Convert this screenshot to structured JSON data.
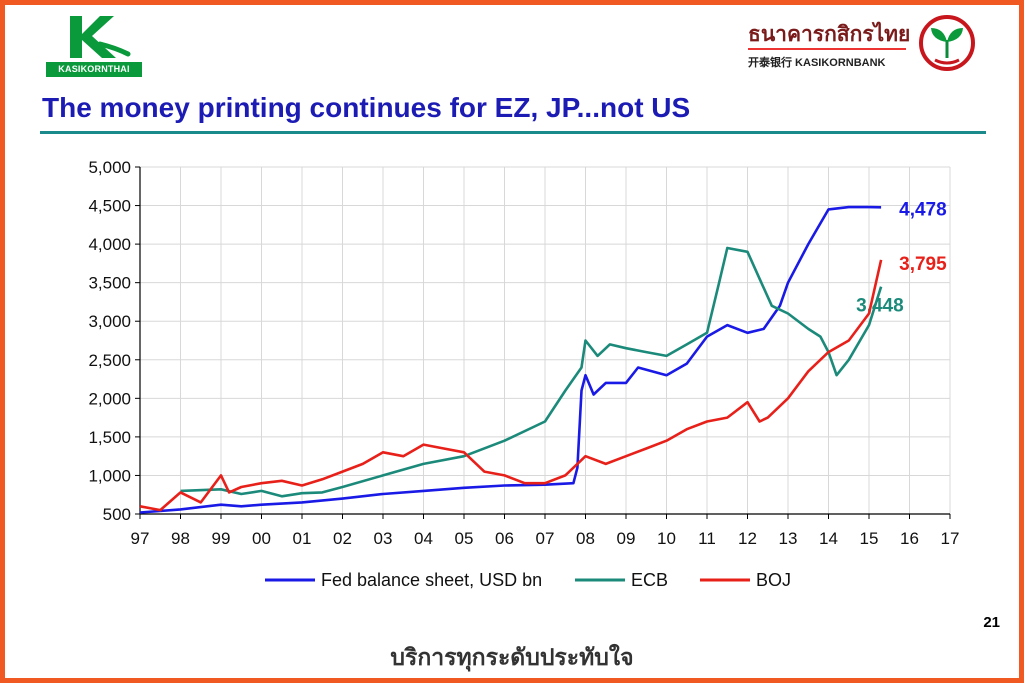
{
  "header": {
    "left_logo_text": "KASIKORNTHAI",
    "bank_name_thai": "ธนาคารกสิกรไทย",
    "bank_name_en": "开泰银行 KASIKORNBANK",
    "title": "The money printing continues for EZ, JP...not US"
  },
  "footer": {
    "page_number": "21",
    "slogan": "บริการทุกระดับประทับใจ"
  },
  "colors": {
    "frame": "#f05a22",
    "title": "#1c1cb4",
    "fed": "#1a1ae6",
    "ecb": "#1b8a7a",
    "boj": "#e8201a"
  },
  "chart_data": {
    "type": "line",
    "title": "",
    "xlabel": "",
    "ylabel": "",
    "x_ticks": [
      "97",
      "98",
      "99",
      "00",
      "01",
      "02",
      "03",
      "04",
      "05",
      "06",
      "07",
      "08",
      "09",
      "10",
      "11",
      "12",
      "13",
      "14",
      "15",
      "16",
      "17"
    ],
    "xlim": [
      1997,
      2017
    ],
    "ylim": [
      500,
      5000
    ],
    "y_ticks": [
      "500",
      "1,000",
      "1,500",
      "2,000",
      "2,500",
      "3,000",
      "3,500",
      "4,000",
      "4,500",
      "5,000"
    ],
    "grid": true,
    "legend_position": "bottom",
    "series": [
      {
        "name": "Fed balance sheet, USD bn",
        "color": "#1a1ae6",
        "end_label": "4,478",
        "points": [
          [
            1997,
            520
          ],
          [
            1998,
            560
          ],
          [
            1999,
            620
          ],
          [
            1999.5,
            600
          ],
          [
            2000,
            620
          ],
          [
            2001,
            650
          ],
          [
            2002,
            700
          ],
          [
            2003,
            760
          ],
          [
            2004,
            800
          ],
          [
            2005,
            840
          ],
          [
            2006,
            870
          ],
          [
            2007,
            880
          ],
          [
            2007.7,
            900
          ],
          [
            2007.8,
            1100
          ],
          [
            2007.9,
            2100
          ],
          [
            2008,
            2300
          ],
          [
            2008.2,
            2050
          ],
          [
            2008.5,
            2200
          ],
          [
            2009,
            2200
          ],
          [
            2009.3,
            2400
          ],
          [
            2010,
            2300
          ],
          [
            2010.5,
            2450
          ],
          [
            2011,
            2800
          ],
          [
            2011.5,
            2950
          ],
          [
            2012,
            2850
          ],
          [
            2012.4,
            2900
          ],
          [
            2012.8,
            3200
          ],
          [
            2013,
            3500
          ],
          [
            2013.5,
            4000
          ],
          [
            2014,
            4450
          ],
          [
            2014.5,
            4480
          ],
          [
            2015,
            4480
          ],
          [
            2015.3,
            4478
          ]
        ]
      },
      {
        "name": "ECB",
        "color": "#1b8a7a",
        "end_label": "3,448",
        "points": [
          [
            1998,
            800
          ],
          [
            1999,
            820
          ],
          [
            1999.5,
            760
          ],
          [
            2000,
            800
          ],
          [
            2000.5,
            730
          ],
          [
            2001,
            770
          ],
          [
            2001.5,
            780
          ],
          [
            2002,
            850
          ],
          [
            2003,
            1000
          ],
          [
            2004,
            1150
          ],
          [
            2005,
            1250
          ],
          [
            2006,
            1450
          ],
          [
            2007,
            1700
          ],
          [
            2007.5,
            2100
          ],
          [
            2007.9,
            2400
          ],
          [
            2008,
            2750
          ],
          [
            2008.3,
            2550
          ],
          [
            2008.6,
            2700
          ],
          [
            2009,
            2650
          ],
          [
            2009.5,
            2600
          ],
          [
            2010,
            2550
          ],
          [
            2010.5,
            2700
          ],
          [
            2011,
            2850
          ],
          [
            2011.3,
            3500
          ],
          [
            2011.5,
            3950
          ],
          [
            2012,
            3900
          ],
          [
            2012.3,
            3550
          ],
          [
            2012.6,
            3200
          ],
          [
            2013,
            3100
          ],
          [
            2013.5,
            2900
          ],
          [
            2013.8,
            2800
          ],
          [
            2014,
            2600
          ],
          [
            2014.2,
            2300
          ],
          [
            2014.5,
            2500
          ],
          [
            2015,
            2950
          ],
          [
            2015.3,
            3448
          ]
        ]
      },
      {
        "name": "BOJ",
        "color": "#e8201a",
        "end_label": "3,795",
        "points": [
          [
            1997,
            600
          ],
          [
            1997.5,
            550
          ],
          [
            1998,
            780
          ],
          [
            1998.5,
            650
          ],
          [
            1999,
            1000
          ],
          [
            1999.2,
            780
          ],
          [
            1999.5,
            850
          ],
          [
            2000,
            900
          ],
          [
            2000.5,
            930
          ],
          [
            2001,
            870
          ],
          [
            2001.5,
            950
          ],
          [
            2002,
            1050
          ],
          [
            2002.5,
            1150
          ],
          [
            2003,
            1300
          ],
          [
            2003.5,
            1250
          ],
          [
            2004,
            1400
          ],
          [
            2004.5,
            1350
          ],
          [
            2005,
            1300
          ],
          [
            2005.5,
            1050
          ],
          [
            2006,
            1000
          ],
          [
            2006.5,
            900
          ],
          [
            2007,
            900
          ],
          [
            2007.5,
            1000
          ],
          [
            2008,
            1250
          ],
          [
            2008.5,
            1150
          ],
          [
            2009,
            1250
          ],
          [
            2009.5,
            1350
          ],
          [
            2010,
            1450
          ],
          [
            2010.5,
            1600
          ],
          [
            2011,
            1700
          ],
          [
            2011.5,
            1750
          ],
          [
            2012,
            1950
          ],
          [
            2012.3,
            1700
          ],
          [
            2012.5,
            1750
          ],
          [
            2013,
            2000
          ],
          [
            2013.5,
            2350
          ],
          [
            2014,
            2600
          ],
          [
            2014.5,
            2750
          ],
          [
            2015,
            3100
          ],
          [
            2015.3,
            3795
          ]
        ]
      }
    ]
  }
}
